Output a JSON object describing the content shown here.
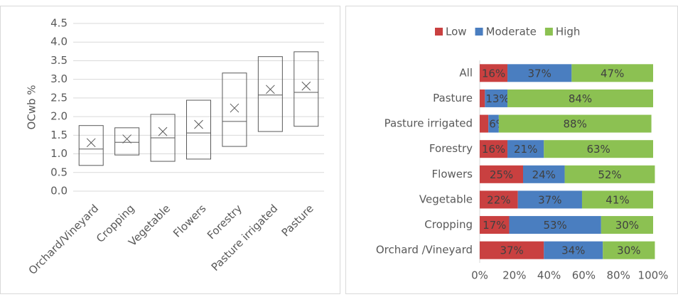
{
  "chart_data": [
    {
      "type": "box",
      "y_label": "OCwb %",
      "categories": [
        "Orchard/Vineyard",
        "Cropping",
        "Vegetable",
        "Flowers",
        "Forestry",
        "Pasture irrigated",
        "Pasture"
      ],
      "min": [
        0.69,
        0.97,
        0.8,
        0.86,
        1.2,
        1.6,
        1.74
      ],
      "max": [
        1.76,
        1.7,
        2.06,
        2.44,
        3.17,
        3.61,
        3.74
      ],
      "median": [
        1.13,
        1.31,
        1.43,
        1.56,
        1.87,
        2.58,
        2.65
      ],
      "mean": [
        1.3,
        1.4,
        1.6,
        1.79,
        2.23,
        2.73,
        2.82
      ],
      "ylim": [
        0,
        4.5
      ],
      "yticks": [
        {
          "value": 0,
          "label": "0.0"
        },
        0.5,
        {
          "value": 1,
          "label": "1.0"
        },
        1.5,
        {
          "value": 2,
          "label": "2.0"
        },
        2.5,
        {
          "value": 3,
          "label": "3.0"
        },
        3.5,
        {
          "value": 4,
          "label": "4.0"
        },
        4.5
      ],
      "grid": true,
      "color": "#595959"
    },
    {
      "type": "stacked_barh",
      "categories": [
        "All",
        "Pasture",
        "Pasture irrigated",
        "Forestry",
        "Flowers",
        "Vegetable",
        "Cropping",
        "Orchard /Vineyard"
      ],
      "series": [
        {
          "name": "Low",
          "color": "#c94040",
          "values": [
            16,
            3,
            5,
            16,
            25,
            22,
            17,
            37
          ],
          "value_labels": [
            "16%",
            null,
            null,
            "16%",
            "25%",
            "22%",
            "17%",
            "37%"
          ]
        },
        {
          "name": "Moderate",
          "color": "#4a7ec0",
          "values": [
            37,
            13,
            6,
            21,
            24,
            37,
            53,
            34
          ],
          "value_labels": [
            "37%",
            "13%",
            "6%",
            "21%",
            "24%",
            "37%",
            "53%",
            "34%"
          ]
        },
        {
          "name": "High",
          "color": "#8cc152",
          "values": [
            47,
            84,
            88,
            63,
            52,
            41,
            30,
            30
          ],
          "value_labels": [
            "47%",
            "84%",
            "88%",
            "63%",
            "52%",
            "41%",
            "30%",
            "30%"
          ]
        }
      ],
      "xlim": [
        0,
        100
      ],
      "xticks": [
        {
          "value": 0,
          "label": "0%"
        },
        {
          "value": 20,
          "label": "20%"
        },
        {
          "value": 40,
          "label": "40%"
        },
        {
          "value": 60,
          "label": "60%"
        },
        {
          "value": 80,
          "label": "80%"
        },
        {
          "value": 100,
          "label": "100%"
        }
      ],
      "legend": "top"
    }
  ]
}
